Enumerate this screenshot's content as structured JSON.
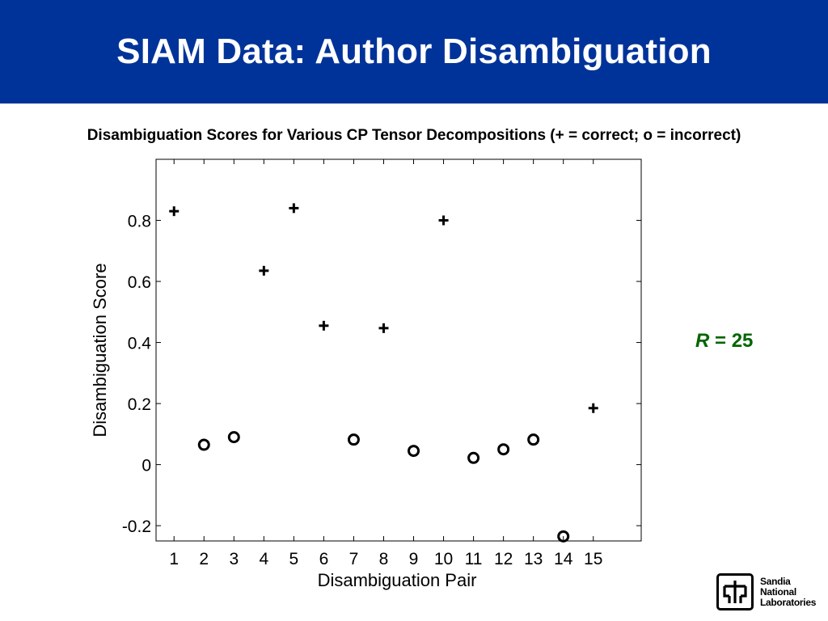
{
  "header": {
    "title": "SIAM Data: Author Disambiguation",
    "background": "#003399"
  },
  "subtitle": "Disambiguation Scores for Various CP Tensor Decompositions (+ = correct; o = incorrect)",
  "annotation": {
    "symbol": "R",
    "rest": " = 25",
    "color": "#006600"
  },
  "logo": {
    "line1": "Sandia",
    "line2": "National",
    "line3": "Laboratories"
  },
  "chart_data": {
    "type": "scatter",
    "xlabel": "Disambiguation Pair",
    "ylabel": "Disambiguation Score",
    "xlim": [
      0.4,
      16.6
    ],
    "ylim": [
      -0.25,
      1.0
    ],
    "xticks": [
      1,
      2,
      3,
      4,
      5,
      6,
      7,
      8,
      9,
      10,
      11,
      12,
      13,
      14,
      15
    ],
    "yticks": [
      -0.2,
      0,
      0.2,
      0.4,
      0.6,
      0.8
    ],
    "ytick_labels": [
      "-0.2",
      "0",
      "0.2",
      "0.4",
      "0.6",
      "0.8"
    ],
    "grid": false,
    "series": [
      {
        "marker": "plus",
        "points": [
          {
            "x": 1,
            "y": 0.83
          },
          {
            "x": 4,
            "y": 0.635
          },
          {
            "x": 5,
            "y": 0.84
          },
          {
            "x": 6,
            "y": 0.455
          },
          {
            "x": 8,
            "y": 0.447
          },
          {
            "x": 10,
            "y": 0.8
          },
          {
            "x": 15,
            "y": 0.185
          }
        ]
      },
      {
        "marker": "circle",
        "points": [
          {
            "x": 2,
            "y": 0.065
          },
          {
            "x": 3,
            "y": 0.09
          },
          {
            "x": 7,
            "y": 0.082
          },
          {
            "x": 9,
            "y": 0.045
          },
          {
            "x": 11,
            "y": 0.022
          },
          {
            "x": 12,
            "y": 0.05
          },
          {
            "x": 13,
            "y": 0.082
          },
          {
            "x": 14,
            "y": -0.235
          }
        ]
      }
    ]
  }
}
